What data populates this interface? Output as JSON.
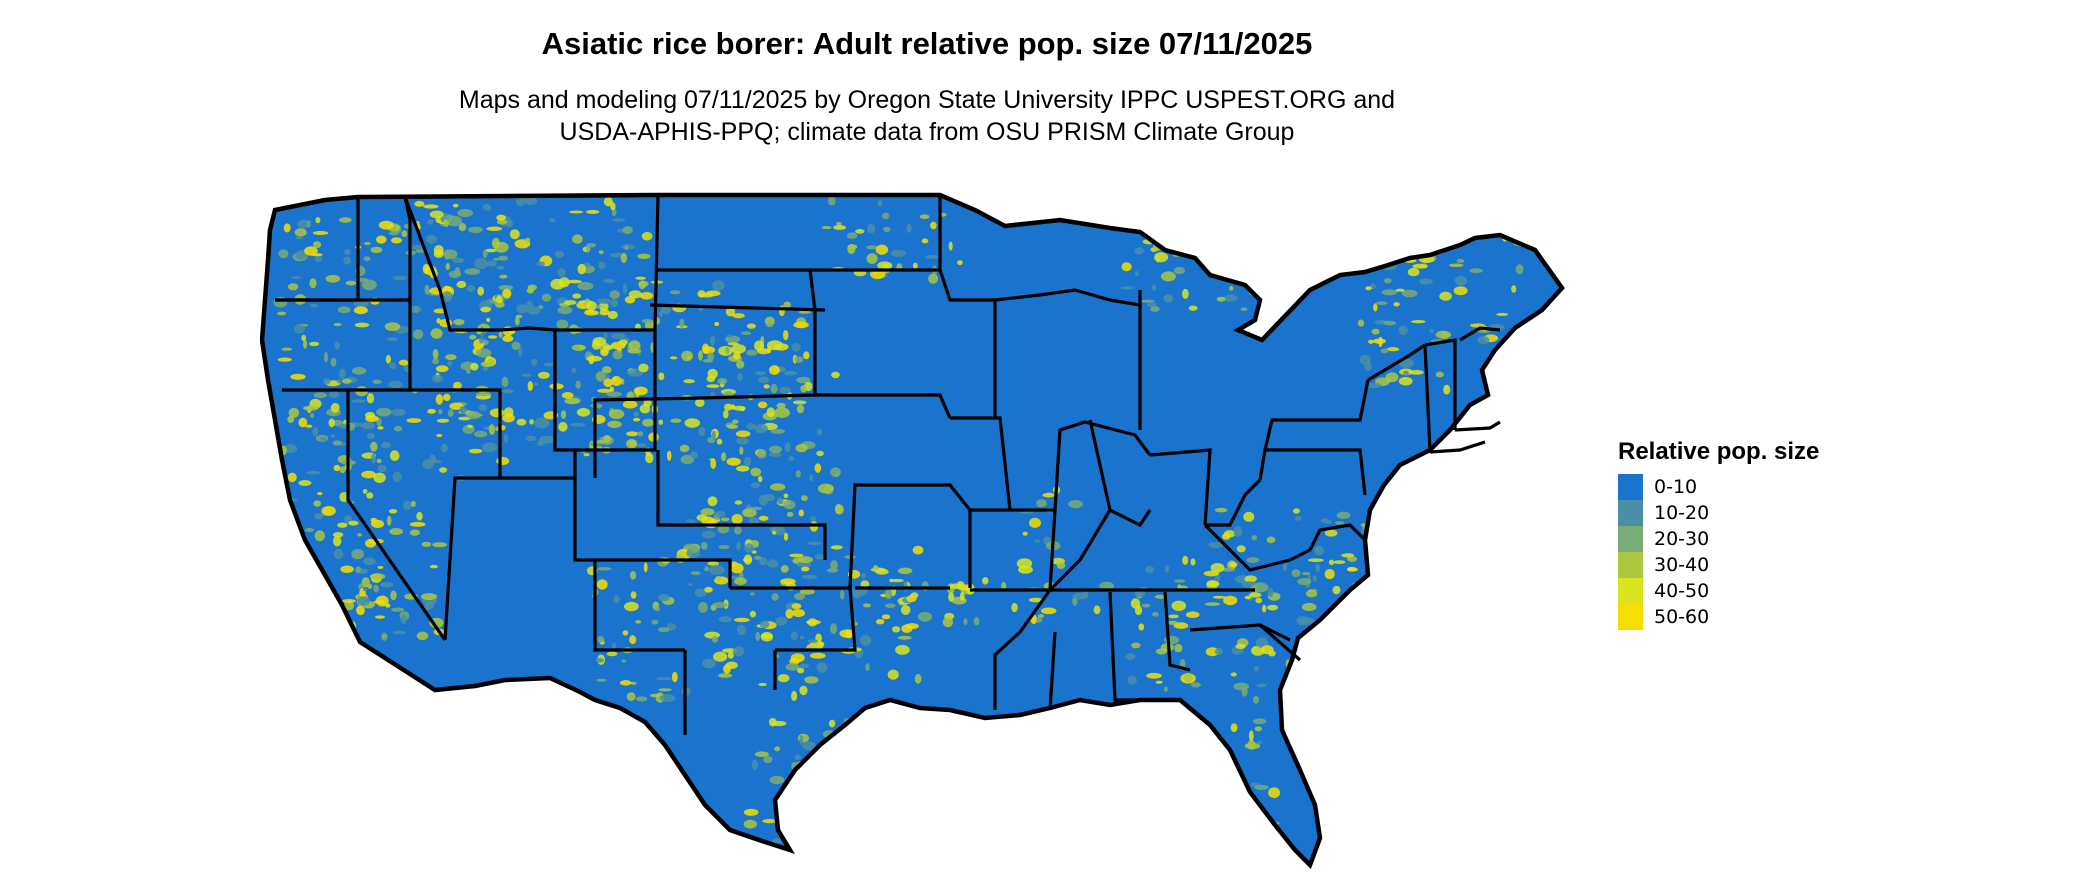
{
  "title": "Asiatic rice borer: Adult relative pop. size 07/11/2025",
  "subtitle_lines": [
    "Maps and modeling 07/11/2025 by Oregon State University IPPC USPEST.ORG and",
    "USDA-APHIS-PPQ; climate data from OSU PRISM Climate Group"
  ],
  "map": {
    "region": "Contiguous United States",
    "boundaries": "state outlines",
    "base_color": "#1a73cc",
    "outline_color": "#000000"
  },
  "legend": {
    "title": "Relative pop. size",
    "items": [
      {
        "label": "0-10",
        "color": "#1a73cc"
      },
      {
        "label": "10-20",
        "color": "#4a8fa6"
      },
      {
        "label": "20-30",
        "color": "#7aab74"
      },
      {
        "label": "30-40",
        "color": "#abc740"
      },
      {
        "label": "40-50",
        "color": "#d9e41e"
      },
      {
        "label": "50-60",
        "color": "#f5de00"
      }
    ]
  }
}
